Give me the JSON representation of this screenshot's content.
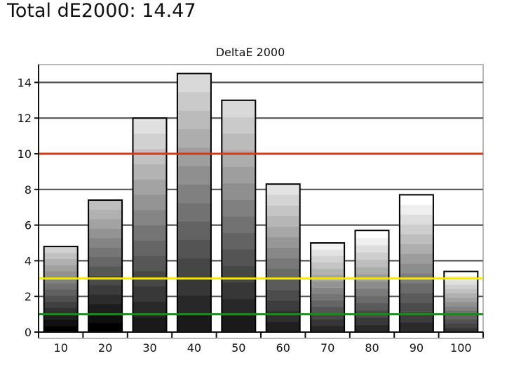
{
  "headline": "Total dE2000: 14.47",
  "chart_data": {
    "type": "bar",
    "title": "DeltaE 2000",
    "xlabel": "",
    "ylabel": "",
    "categories": [
      "10",
      "20",
      "30",
      "40",
      "50",
      "60",
      "70",
      "80",
      "90",
      "100"
    ],
    "values": [
      4.8,
      7.4,
      12.0,
      14.5,
      13.0,
      8.3,
      5.0,
      5.7,
      7.7,
      3.4
    ],
    "ylim": [
      0,
      15
    ],
    "yticks": [
      "0",
      "2",
      "4",
      "6",
      "8",
      "10",
      "12",
      "14"
    ],
    "grid": true,
    "reference_lines": [
      {
        "value": 10,
        "color": "#d03a14"
      },
      {
        "value": 3,
        "color": "#f2ec00"
      },
      {
        "value": 1,
        "color": "#169016"
      }
    ],
    "bar_fill_top": [
      0.82,
      0.75,
      0.88,
      0.85,
      0.85,
      0.89,
      0.95,
      1.0,
      1.0,
      1.0
    ],
    "bar_fill_bottom": [
      0.0,
      0.0,
      0.1,
      0.1,
      0.1,
      0.12,
      0.15,
      0.16,
      0.17,
      0.2
    ]
  }
}
